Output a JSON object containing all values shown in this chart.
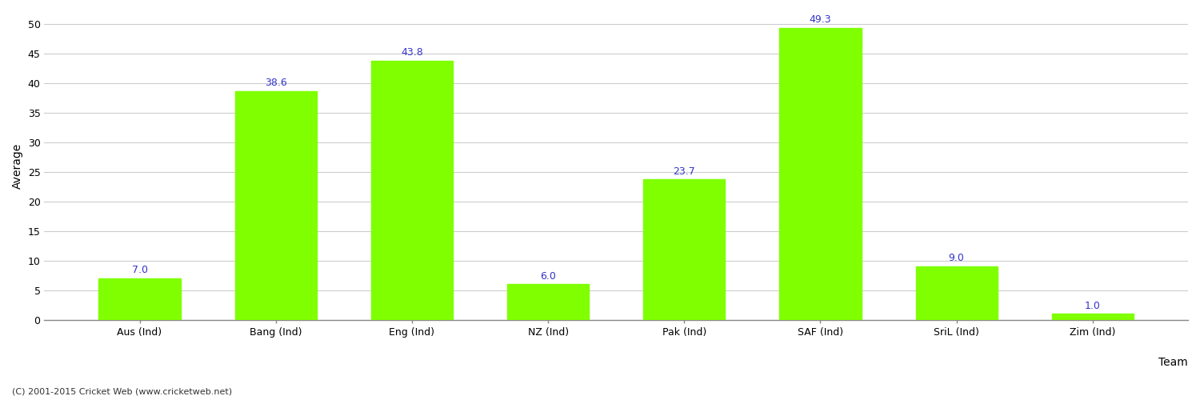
{
  "categories": [
    "Aus (Ind)",
    "Bang (Ind)",
    "Eng (Ind)",
    "NZ (Ind)",
    "Pak (Ind)",
    "SAF (Ind)",
    "SriL (Ind)",
    "Zim (Ind)"
  ],
  "values": [
    7.0,
    38.6,
    43.8,
    6.0,
    23.7,
    49.3,
    9.0,
    1.0
  ],
  "bar_color": "#7fff00",
  "bar_edgecolor": "#7fff00",
  "label_color": "#3333cc",
  "label_fontsize": 9,
  "xlabel": "Team",
  "ylabel": "Average",
  "ylim": [
    0,
    52
  ],
  "yticks": [
    0,
    5,
    10,
    15,
    20,
    25,
    30,
    35,
    40,
    45,
    50
  ],
  "grid_color": "#cccccc",
  "background_color": "#ffffff",
  "tick_label_fontsize": 9,
  "axis_label_fontsize": 10,
  "footer_text": "(C) 2001-2015 Cricket Web (www.cricketweb.net)",
  "footer_fontsize": 8,
  "footer_color": "#333333",
  "bar_width": 0.6
}
